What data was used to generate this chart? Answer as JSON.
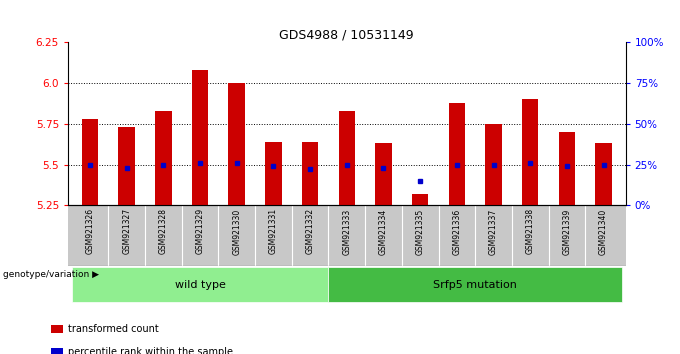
{
  "title": "GDS4988 / 10531149",
  "samples": [
    "GSM921326",
    "GSM921327",
    "GSM921328",
    "GSM921329",
    "GSM921330",
    "GSM921331",
    "GSM921332",
    "GSM921333",
    "GSM921334",
    "GSM921335",
    "GSM921336",
    "GSM921337",
    "GSM921338",
    "GSM921339",
    "GSM921340"
  ],
  "transformed_count": [
    5.78,
    5.73,
    5.83,
    6.08,
    6.0,
    5.64,
    5.64,
    5.83,
    5.63,
    5.32,
    5.88,
    5.75,
    5.9,
    5.7,
    5.63
  ],
  "percentile_rank": [
    25,
    23,
    25,
    26,
    26,
    24,
    22,
    25,
    23,
    15,
    25,
    25,
    26,
    24,
    25
  ],
  "y_min": 5.25,
  "y_max": 6.25,
  "y_ticks_left": [
    5.25,
    5.5,
    5.75,
    6.0,
    6.25
  ],
  "y_ticks_right": [
    0,
    25,
    50,
    75,
    100
  ],
  "bar_color": "#cc0000",
  "dot_color": "#0000cc",
  "fig_bg": "#ffffff",
  "plot_bg": "#ffffff",
  "tick_area_bg": "#c8c8c8",
  "groups": [
    {
      "label": "wild type",
      "start": 0,
      "end": 7,
      "color": "#90ee90"
    },
    {
      "label": "Srfp5 mutation",
      "start": 7,
      "end": 15,
      "color": "#44bb44"
    }
  ],
  "group_label_prefix": "genotype/variation",
  "legend": [
    {
      "label": "transformed count",
      "color": "#cc0000"
    },
    {
      "label": "percentile rank within the sample",
      "color": "#0000cc"
    }
  ],
  "gridline_y": [
    5.5,
    5.75,
    6.0
  ],
  "bar_width": 0.45,
  "bar_baseline": 5.25
}
